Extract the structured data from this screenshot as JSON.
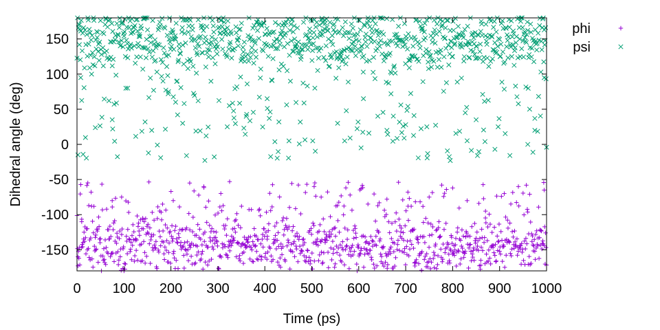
{
  "chart_data": {
    "type": "scatter",
    "title": "",
    "xlabel": "Time (ps)",
    "ylabel": "Dihedral angle (deg)",
    "xlim": [
      0,
      1000
    ],
    "ylim": [
      -180,
      180
    ],
    "xticks": [
      0,
      100,
      200,
      300,
      400,
      500,
      600,
      700,
      800,
      900,
      1000
    ],
    "yticks": [
      -150,
      -100,
      -50,
      0,
      50,
      100,
      150
    ],
    "grid": false,
    "legend_position": "outside-top-right",
    "series": [
      {
        "name": "phi",
        "marker": "plus",
        "color": "#9400d3",
        "n_points": 1000,
        "x_range": [
          0,
          1000
        ],
        "typical_range": [
          -165,
          -125
        ],
        "overall_range": [
          -178,
          -53
        ],
        "sample_points": [
          [
            2,
            -160
          ],
          [
            10,
            -110
          ],
          [
            22,
            -120
          ],
          [
            40,
            -150
          ],
          [
            75,
            -80
          ],
          [
            95,
            -75
          ],
          [
            140,
            -105
          ],
          [
            205,
            -80
          ],
          [
            240,
            -55
          ],
          [
            270,
            -60
          ],
          [
            325,
            -53
          ],
          [
            405,
            -135
          ],
          [
            505,
            -60
          ],
          [
            520,
            -75
          ],
          [
            605,
            -63
          ],
          [
            660,
            -78
          ],
          [
            705,
            -88
          ],
          [
            750,
            -75
          ],
          [
            800,
            -62
          ],
          [
            870,
            -95
          ],
          [
            940,
            -60
          ],
          [
            995,
            -65
          ],
          [
            550,
            -170
          ],
          [
            720,
            -168
          ],
          [
            860,
            -165
          ]
        ]
      },
      {
        "name": "psi",
        "marker": "cross",
        "color": "#009e73",
        "n_points": 1000,
        "x_range": [
          0,
          1000
        ],
        "typical_range": [
          125,
          175
        ],
        "overall_range": [
          -25,
          180
        ],
        "sample_points": [
          [
            5,
            170
          ],
          [
            8,
            95
          ],
          [
            75,
            35
          ],
          [
            76,
            22
          ],
          [
            108,
            80
          ],
          [
            145,
            32
          ],
          [
            195,
            75
          ],
          [
            210,
            60
          ],
          [
            225,
            30
          ],
          [
            258,
            62
          ],
          [
            275,
            12
          ],
          [
            320,
            25
          ],
          [
            405,
            65
          ],
          [
            430,
            32
          ],
          [
            502,
            5
          ],
          [
            555,
            30
          ],
          [
            570,
            5
          ],
          [
            605,
            -5
          ],
          [
            610,
            65
          ],
          [
            660,
            20
          ],
          [
            700,
            28
          ],
          [
            745,
            25
          ],
          [
            795,
            -23
          ],
          [
            850,
            35
          ],
          [
            890,
            -7
          ],
          [
            960,
            0
          ],
          [
            975,
            20
          ],
          [
            995,
            95
          ]
        ]
      }
    ]
  }
}
